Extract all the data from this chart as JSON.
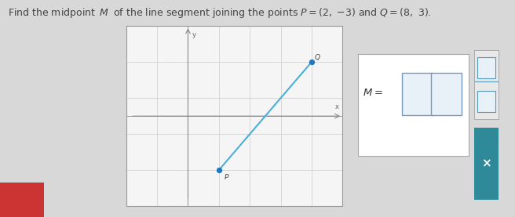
{
  "title": "Find the midpoint M of the line segment joining the points P = (2, −3) and Q = (8, 3).",
  "title_fontsize": 9.0,
  "title_color": "#444444",
  "bg_color": "#d8d8d8",
  "plot_bg_color": "#f5f5f5",
  "plot_border_color": "#999999",
  "P": [
    2,
    -3
  ],
  "Q": [
    8,
    3
  ],
  "line_color": "#4ab0d8",
  "point_color": "#2277bb",
  "point_size": 18,
  "grid_color": "#cccccc",
  "axis_color": "#888888",
  "box_color": "#ffffff",
  "box_border_color": "#aaaaaa",
  "input_box_color": "#e8f0f8",
  "input_box_border": "#7799bb",
  "close_btn_color": "#2e8a99",
  "close_x_color": "#ffffff",
  "fraction_btn_color": "#e8e8e8",
  "fraction_btn_border": "#aaaaaa",
  "fraction_icon_color": "#5599bb",
  "red_rect_color": "#cc3333"
}
